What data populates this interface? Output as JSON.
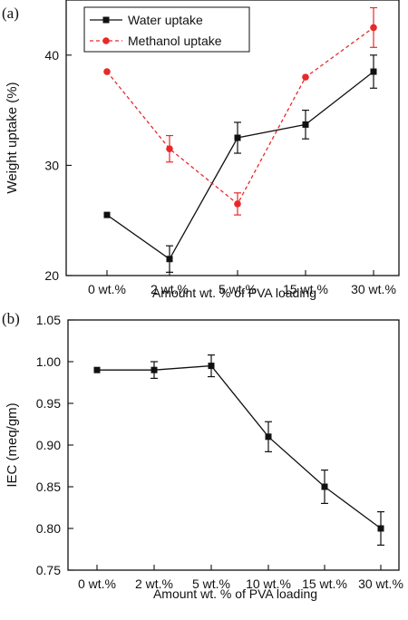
{
  "chart_data": [
    {
      "panel_label": "(a)",
      "type": "line",
      "categories": [
        "0 wt.%",
        "2 wt.%",
        "5 wt.%",
        "15 wt.%",
        "30 wt.%"
      ],
      "xlabel": "Amount wt. % of PVA loading",
      "ylabel": "Weight uptake (%)",
      "ylim": [
        20,
        45
      ],
      "yticks": [
        20,
        30,
        40
      ],
      "legend_position": "top-left",
      "grid": false,
      "series": [
        {
          "name": "Water uptake",
          "values": [
            25.5,
            21.5,
            32.5,
            33.7,
            38.5
          ],
          "errors": [
            null,
            1.2,
            1.4,
            1.3,
            1.5
          ],
          "color": "#111111",
          "marker": "square",
          "dashed": false
        },
        {
          "name": "Methanol uptake",
          "values": [
            38.5,
            31.5,
            26.5,
            38.0,
            42.5
          ],
          "errors": [
            null,
            1.2,
            1.0,
            null,
            1.8
          ],
          "color": "#e8292a",
          "marker": "circle",
          "dashed": true
        }
      ]
    },
    {
      "panel_label": "(b)",
      "type": "line",
      "categories": [
        "0 wt.%",
        "2 wt.%",
        "5 wt.%",
        "10 wt.%",
        "15 wt.%",
        "30 wt.%"
      ],
      "xlabel": "Amount wt. % of PVA loading",
      "ylabel": "IEC (meq/gm)",
      "ylim": [
        0.75,
        1.05
      ],
      "yticks": [
        "0.75",
        "0.80",
        "0.85",
        "0.90",
        "0.95",
        "1.00",
        "1.05"
      ],
      "grid": false,
      "series": [
        {
          "values": [
            0.99,
            0.99,
            0.995,
            0.91,
            0.85,
            0.8
          ],
          "errors": [
            null,
            0.01,
            0.013,
            0.018,
            0.02,
            0.02
          ],
          "color": "#111111",
          "marker": "square",
          "dashed": false
        }
      ]
    }
  ]
}
